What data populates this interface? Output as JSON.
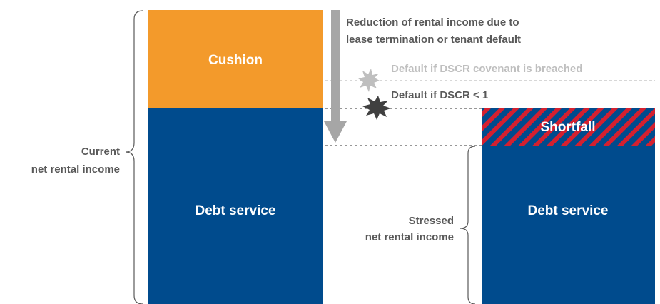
{
  "left_bar": {
    "cushion": "Cushion",
    "debt_service": "Debt service",
    "brace_label": [
      "Current",
      "net rental income"
    ]
  },
  "arrow_label": [
    "Reduction of rental income due to",
    "lease termination or tenant default"
  ],
  "thresholds": {
    "covenant": "Default if DSCR covenant is breached",
    "dscr_one": "Default if DSCR < 1"
  },
  "right_bar": {
    "shortfall": "Shortfall",
    "debt_service": "Debt service",
    "brace_label": [
      "Stressed",
      "net rental income"
    ]
  }
}
